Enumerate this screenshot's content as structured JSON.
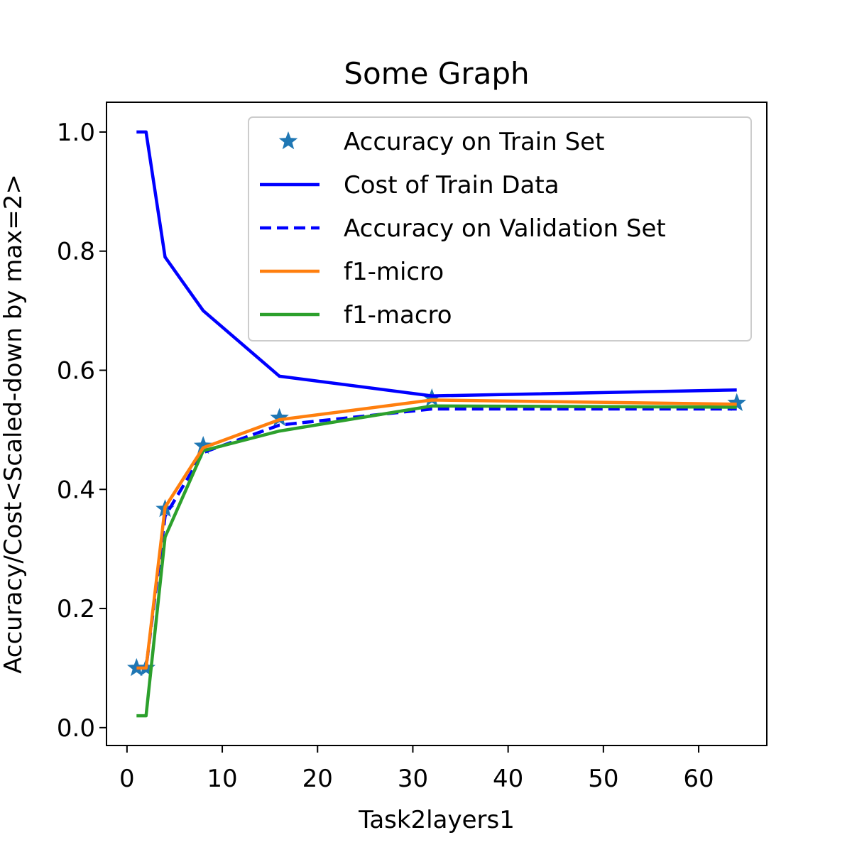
{
  "chart_data": {
    "type": "line",
    "title": "Some Graph",
    "xlabel": "Task2layers1",
    "ylabel": "Accuracy/Cost<Scaled-down by max=2>",
    "xlim": [
      -2.15,
      67.15
    ],
    "ylim": [
      -0.03,
      1.05
    ],
    "xticks": [
      0,
      10,
      20,
      30,
      40,
      50,
      60
    ],
    "yticks": [
      0.0,
      0.2,
      0.4,
      0.6,
      0.8,
      1.0
    ],
    "xtick_labels": [
      "0",
      "10",
      "20",
      "30",
      "40",
      "50",
      "60"
    ],
    "ytick_labels": [
      "0.0",
      "0.2",
      "0.4",
      "0.6",
      "0.8",
      "1.0"
    ],
    "grid": false,
    "legend_position": "top-right",
    "x": [
      1,
      2,
      4,
      8,
      16,
      32,
      64
    ],
    "series": [
      {
        "name": "Accuracy on Train Set",
        "style": "markers",
        "marker": "star",
        "color": "#1f77b4",
        "values": [
          0.1,
          0.1,
          0.367,
          0.473,
          0.52,
          0.553,
          0.545
        ]
      },
      {
        "name": "Cost of Train Data",
        "style": "solid",
        "color": "#0000ff",
        "values": [
          1.0,
          1.0,
          0.79,
          0.7,
          0.59,
          0.557,
          0.567
        ]
      },
      {
        "name": "Accuracy on Validation Set",
        "style": "dashed",
        "color": "#0000ff",
        "values": [
          0.1,
          0.1,
          0.355,
          0.462,
          0.508,
          0.535,
          0.535
        ]
      },
      {
        "name": "f1-micro",
        "style": "solid",
        "color": "#ff7f0e",
        "values": [
          0.1,
          0.1,
          0.37,
          0.47,
          0.517,
          0.55,
          0.543
        ]
      },
      {
        "name": "f1-macro",
        "style": "solid",
        "color": "#2ca02c",
        "values": [
          0.02,
          0.02,
          0.32,
          0.465,
          0.498,
          0.54,
          0.538
        ]
      }
    ]
  }
}
